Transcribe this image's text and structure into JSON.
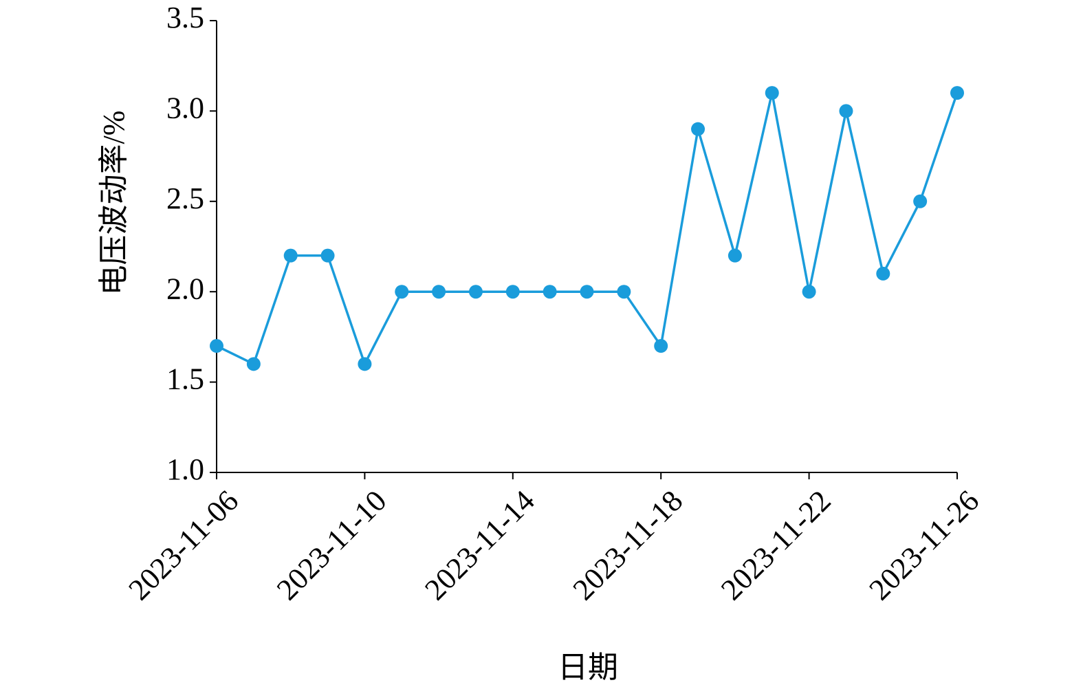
{
  "chart_data": {
    "type": "line",
    "x_label": "日期",
    "y_label": "电压波动率/%",
    "x": [
      "2023-11-06",
      "2023-11-07",
      "2023-11-08",
      "2023-11-09",
      "2023-11-10",
      "2023-11-11",
      "2023-11-12",
      "2023-11-13",
      "2023-11-14",
      "2023-11-15",
      "2023-11-16",
      "2023-11-17",
      "2023-11-18",
      "2023-11-19",
      "2023-11-20",
      "2023-11-21",
      "2023-11-22",
      "2023-11-23",
      "2023-11-24",
      "2023-11-25",
      "2023-11-26"
    ],
    "series": [
      {
        "color": "#1a9cdb",
        "values": [
          1.7,
          1.6,
          2.2,
          2.2,
          1.6,
          2.0,
          2.0,
          2.0,
          2.0,
          2.0,
          2.0,
          2.0,
          1.7,
          2.9,
          2.2,
          3.1,
          2.0,
          3.0,
          2.1,
          2.5,
          3.1
        ]
      }
    ],
    "xlim": [
      "2023-11-06",
      "2023-11-26"
    ],
    "xticks": [
      "2023-11-06",
      "2023-11-10",
      "2023-11-14",
      "2023-11-18",
      "2023-11-22",
      "2023-11-26"
    ],
    "ylim": [
      1.0,
      3.5
    ],
    "yticks": [
      {
        "value": 1,
        "label": "1.0"
      },
      1.5,
      {
        "value": 2,
        "label": "2.0"
      },
      2.5,
      {
        "value": 3,
        "label": "3.0"
      },
      3.5
    ],
    "grid": false
  }
}
